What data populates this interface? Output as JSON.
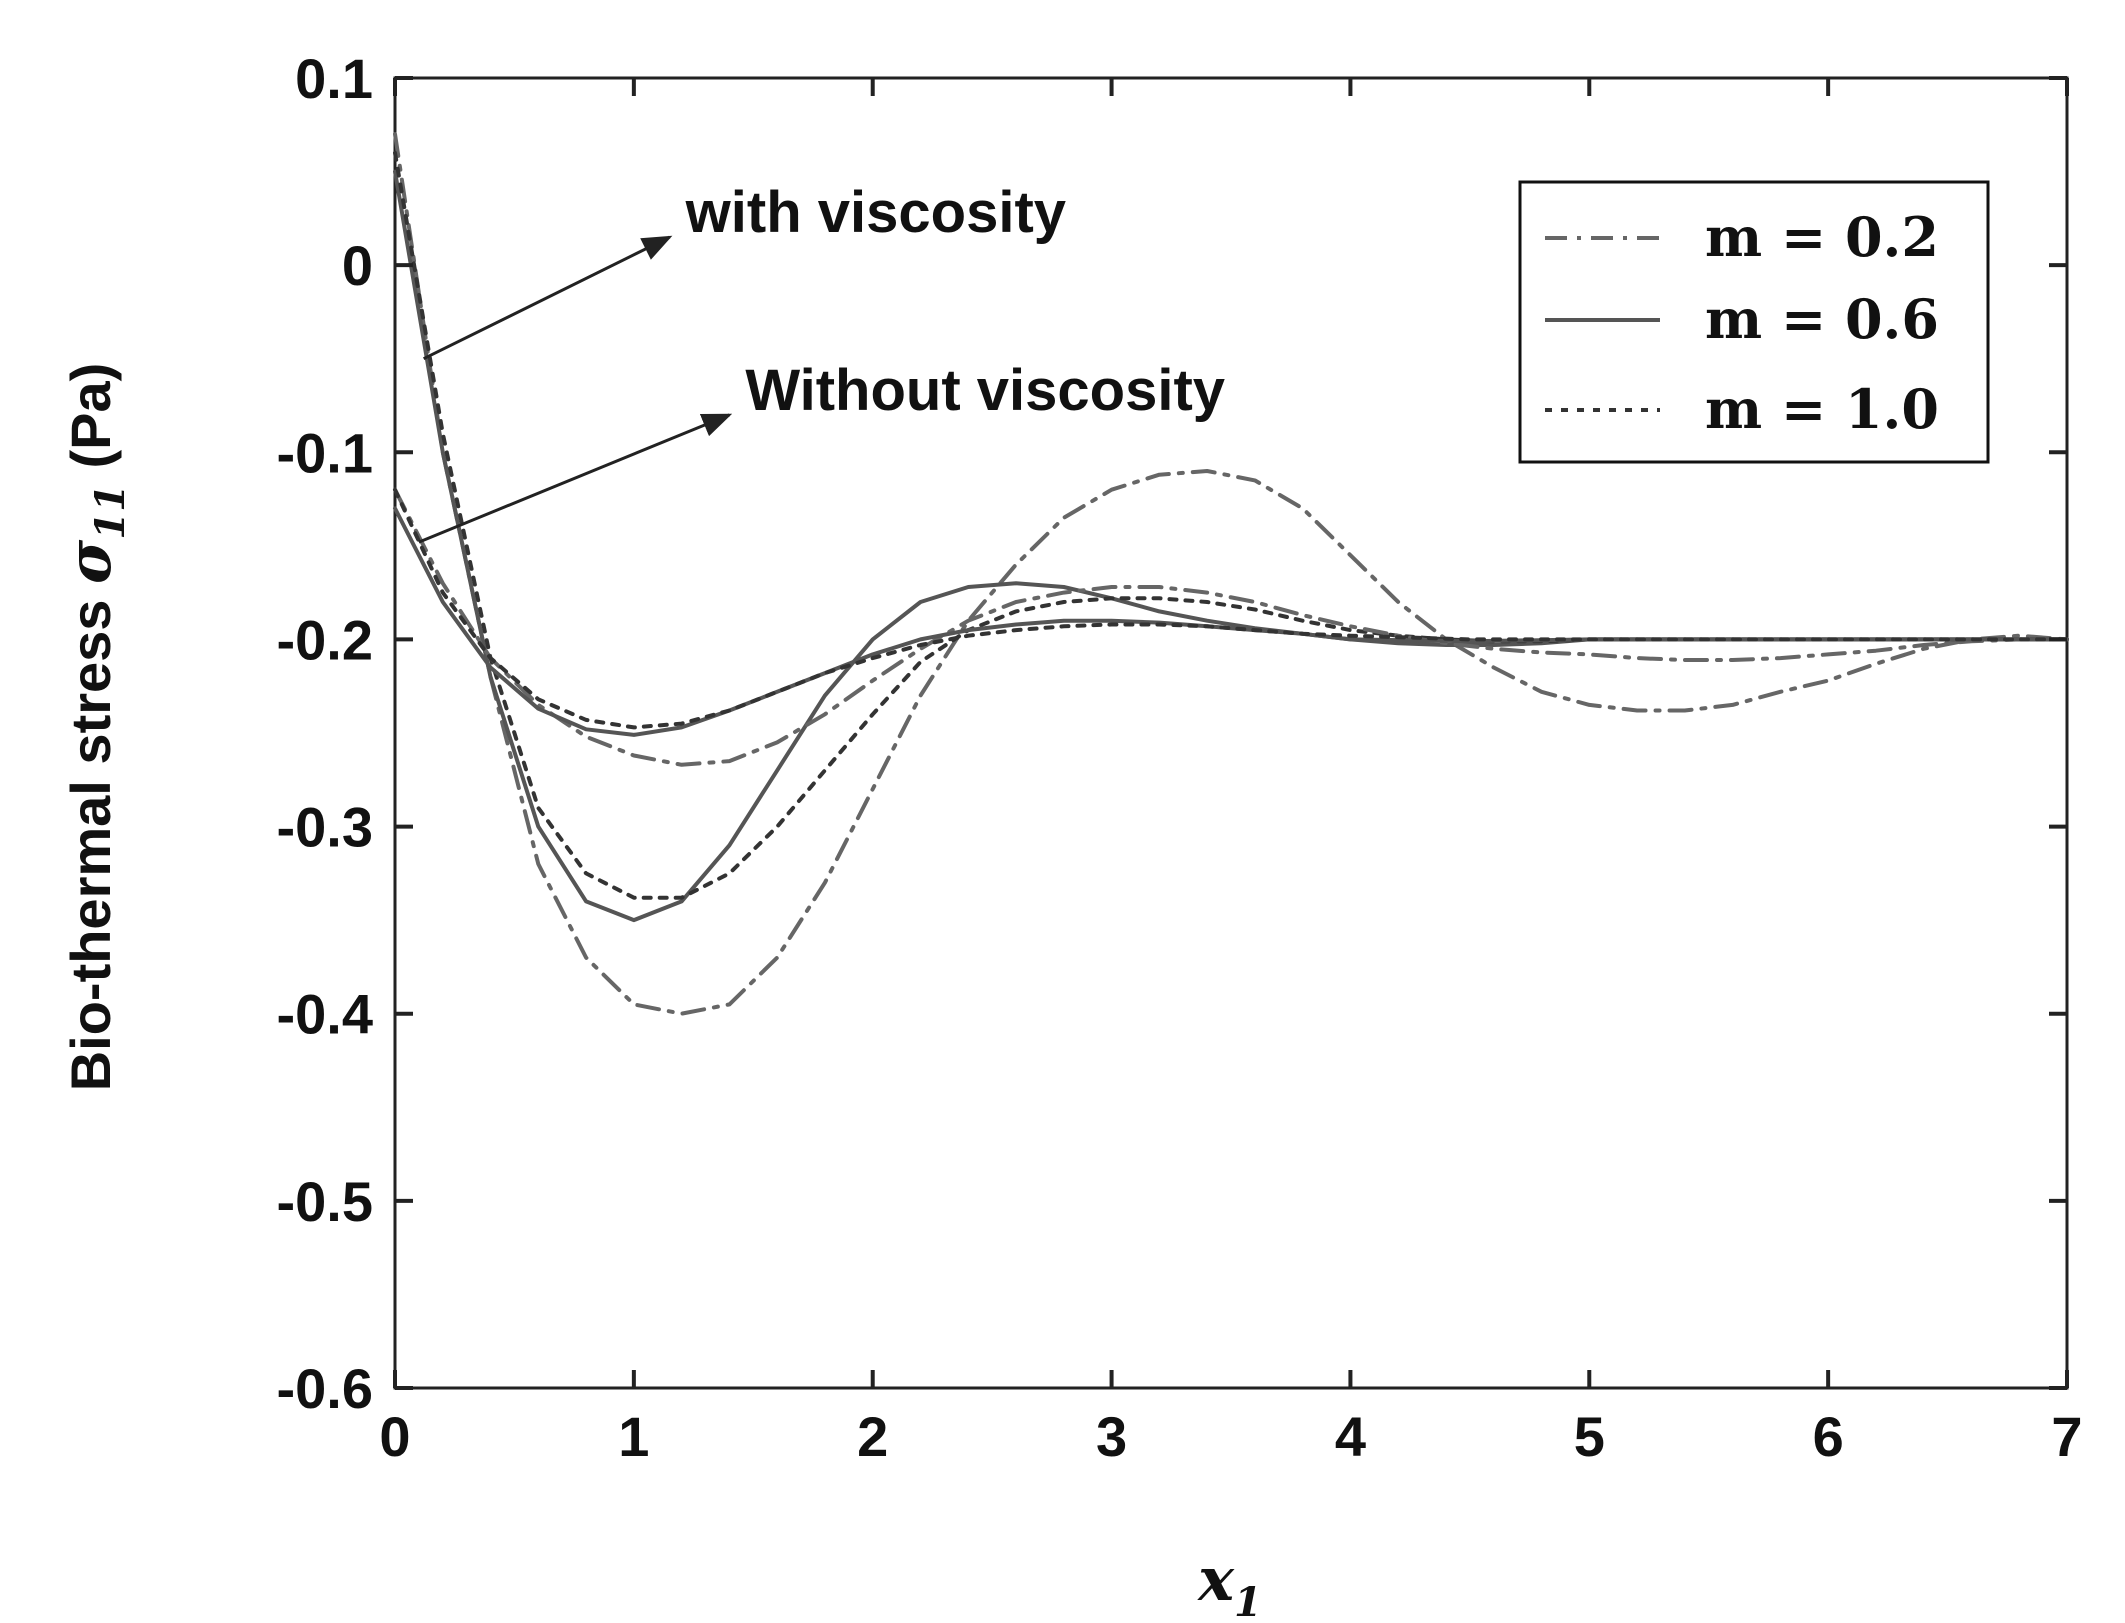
{
  "chart_data": {
    "type": "line",
    "title": "",
    "xlabel": {
      "symbol": "x",
      "sub": "1"
    },
    "ylabel": {
      "text": "Bio-thermal stress ",
      "symbol": "σ",
      "sub": "11",
      "unit": " (Pa)"
    },
    "xlim": [
      0,
      7
    ],
    "ylim": [
      -0.6,
      0.1
    ],
    "x_ticks": [
      {
        "value": 0,
        "label": "0"
      },
      {
        "value": 1,
        "label": "1"
      },
      {
        "value": 2,
        "label": "2"
      },
      {
        "value": 3,
        "label": "3"
      },
      {
        "value": 4,
        "label": "4"
      },
      {
        "value": 5,
        "label": "5"
      },
      {
        "value": 6,
        "label": "6"
      },
      {
        "value": 7,
        "label": "7"
      }
    ],
    "y_ticks": [
      {
        "value": 0.1,
        "label": "0.1"
      },
      {
        "value": 0.0,
        "label": "0"
      },
      {
        "value": -0.1,
        "label": "-0.1"
      },
      {
        "value": -0.2,
        "label": "-0.2"
      },
      {
        "value": -0.3,
        "label": "-0.3"
      },
      {
        "value": -0.4,
        "label": "-0.4"
      },
      {
        "value": -0.5,
        "label": "-0.5"
      },
      {
        "value": -0.6,
        "label": "-0.6"
      }
    ],
    "grid": false,
    "legend_position": "top-right",
    "legend": [
      {
        "label": "m = 0.2",
        "style": "dash-dot"
      },
      {
        "label": "m = 0.6",
        "style": "solid"
      },
      {
        "label": "m = 1.0",
        "style": "dotted"
      }
    ],
    "annotations": [
      {
        "text": "with viscosity",
        "arrow_from": [
          0.12,
          -0.05
        ],
        "arrow_to": [
          1.15,
          0.015
        ]
      },
      {
        "text": "Without viscosity",
        "arrow_from": [
          0.1,
          -0.148
        ],
        "arrow_to": [
          1.4,
          -0.08
        ]
      }
    ],
    "series": [
      {
        "name": "m = 0.2, with viscosity",
        "style": "dash-dot",
        "x": [
          0,
          0.2,
          0.4,
          0.6,
          0.8,
          1.0,
          1.2,
          1.4,
          1.6,
          1.8,
          2.0,
          2.2,
          2.4,
          2.6,
          2.8,
          3.0,
          3.2,
          3.4,
          3.6,
          3.8,
          4.0,
          4.2,
          4.4,
          4.6,
          4.8,
          5.0,
          5.2,
          5.4,
          5.6,
          5.8,
          6.0,
          6.2,
          6.4,
          6.6,
          6.8,
          7.0
        ],
        "y": [
          0.07,
          -0.1,
          -0.22,
          -0.32,
          -0.37,
          -0.395,
          -0.4,
          -0.395,
          -0.37,
          -0.33,
          -0.28,
          -0.23,
          -0.19,
          -0.16,
          -0.135,
          -0.12,
          -0.112,
          -0.11,
          -0.115,
          -0.13,
          -0.155,
          -0.18,
          -0.2,
          -0.215,
          -0.228,
          -0.235,
          -0.238,
          -0.238,
          -0.235,
          -0.228,
          -0.222,
          -0.213,
          -0.205,
          -0.2,
          -0.198,
          -0.2
        ]
      },
      {
        "name": "m = 0.6, with viscosity",
        "style": "solid",
        "x": [
          0,
          0.2,
          0.4,
          0.6,
          0.8,
          1.0,
          1.2,
          1.4,
          1.6,
          1.8,
          2.0,
          2.2,
          2.4,
          2.6,
          2.8,
          3.0,
          3.2,
          3.4,
          3.6,
          3.8,
          4.0,
          4.2,
          4.4,
          4.6,
          4.8,
          5.0,
          5.5,
          6.0,
          6.5,
          7.0
        ],
        "y": [
          0.05,
          -0.1,
          -0.22,
          -0.3,
          -0.34,
          -0.35,
          -0.34,
          -0.31,
          -0.27,
          -0.23,
          -0.2,
          -0.18,
          -0.172,
          -0.17,
          -0.172,
          -0.178,
          -0.185,
          -0.19,
          -0.194,
          -0.197,
          -0.2,
          -0.202,
          -0.203,
          -0.203,
          -0.202,
          -0.2,
          -0.2,
          -0.2,
          -0.2,
          -0.2
        ]
      },
      {
        "name": "m = 1.0, with viscosity",
        "style": "dotted",
        "x": [
          0,
          0.2,
          0.4,
          0.6,
          0.8,
          1.0,
          1.2,
          1.4,
          1.6,
          1.8,
          2.0,
          2.2,
          2.4,
          2.6,
          2.8,
          3.0,
          3.2,
          3.4,
          3.6,
          3.8,
          4.0,
          4.2,
          4.4,
          4.6,
          4.8,
          5.0,
          5.5,
          6.0,
          6.5,
          7.0
        ],
        "y": [
          0.06,
          -0.09,
          -0.21,
          -0.29,
          -0.325,
          -0.338,
          -0.338,
          -0.325,
          -0.3,
          -0.27,
          -0.24,
          -0.212,
          -0.195,
          -0.185,
          -0.18,
          -0.178,
          -0.178,
          -0.18,
          -0.184,
          -0.19,
          -0.195,
          -0.198,
          -0.2,
          -0.201,
          -0.201,
          -0.2,
          -0.2,
          -0.2,
          -0.2,
          -0.2
        ]
      },
      {
        "name": "m = 0.2, without viscosity",
        "style": "dash-dot",
        "x": [
          0,
          0.2,
          0.4,
          0.6,
          0.8,
          1.0,
          1.2,
          1.4,
          1.6,
          1.8,
          2.0,
          2.2,
          2.4,
          2.6,
          2.8,
          3.0,
          3.2,
          3.4,
          3.6,
          3.8,
          4.0,
          4.2,
          4.4,
          4.6,
          4.8,
          5.0,
          5.2,
          5.4,
          5.6,
          5.8,
          6.0,
          6.2,
          6.4,
          6.6,
          6.8,
          7.0
        ],
        "y": [
          -0.12,
          -0.17,
          -0.21,
          -0.235,
          -0.252,
          -0.262,
          -0.267,
          -0.265,
          -0.255,
          -0.24,
          -0.222,
          -0.205,
          -0.19,
          -0.18,
          -0.175,
          -0.172,
          -0.172,
          -0.175,
          -0.18,
          -0.187,
          -0.193,
          -0.198,
          -0.202,
          -0.205,
          -0.207,
          -0.208,
          -0.21,
          -0.211,
          -0.211,
          -0.21,
          -0.208,
          -0.206,
          -0.203,
          -0.201,
          -0.2,
          -0.2
        ]
      },
      {
        "name": "m = 0.6, without viscosity",
        "style": "solid",
        "x": [
          0,
          0.2,
          0.4,
          0.6,
          0.8,
          1.0,
          1.2,
          1.4,
          1.6,
          1.8,
          2.0,
          2.2,
          2.4,
          2.6,
          2.8,
          3.0,
          3.2,
          3.4,
          3.6,
          3.8,
          4.0,
          4.5,
          5.0,
          5.5,
          6.0,
          6.5,
          7.0
        ],
        "y": [
          -0.13,
          -0.18,
          -0.215,
          -0.237,
          -0.248,
          -0.251,
          -0.247,
          -0.238,
          -0.228,
          -0.218,
          -0.208,
          -0.2,
          -0.195,
          -0.192,
          -0.19,
          -0.19,
          -0.191,
          -0.193,
          -0.195,
          -0.197,
          -0.2,
          -0.201,
          -0.2,
          -0.2,
          -0.2,
          -0.2,
          -0.2
        ]
      },
      {
        "name": "m = 1.0, without viscosity",
        "style": "dotted",
        "x": [
          0,
          0.2,
          0.4,
          0.6,
          0.8,
          1.0,
          1.2,
          1.4,
          1.6,
          1.8,
          2.0,
          2.2,
          2.4,
          2.6,
          2.8,
          3.0,
          3.2,
          3.4,
          3.6,
          3.8,
          4.0,
          4.5,
          5.0,
          5.5,
          6.0,
          6.5,
          7.0
        ],
        "y": [
          -0.12,
          -0.175,
          -0.21,
          -0.232,
          -0.243,
          -0.247,
          -0.245,
          -0.238,
          -0.228,
          -0.218,
          -0.21,
          -0.203,
          -0.198,
          -0.195,
          -0.193,
          -0.192,
          -0.192,
          -0.193,
          -0.195,
          -0.197,
          -0.198,
          -0.2,
          -0.2,
          -0.2,
          -0.2,
          -0.2,
          -0.2
        ]
      }
    ]
  }
}
